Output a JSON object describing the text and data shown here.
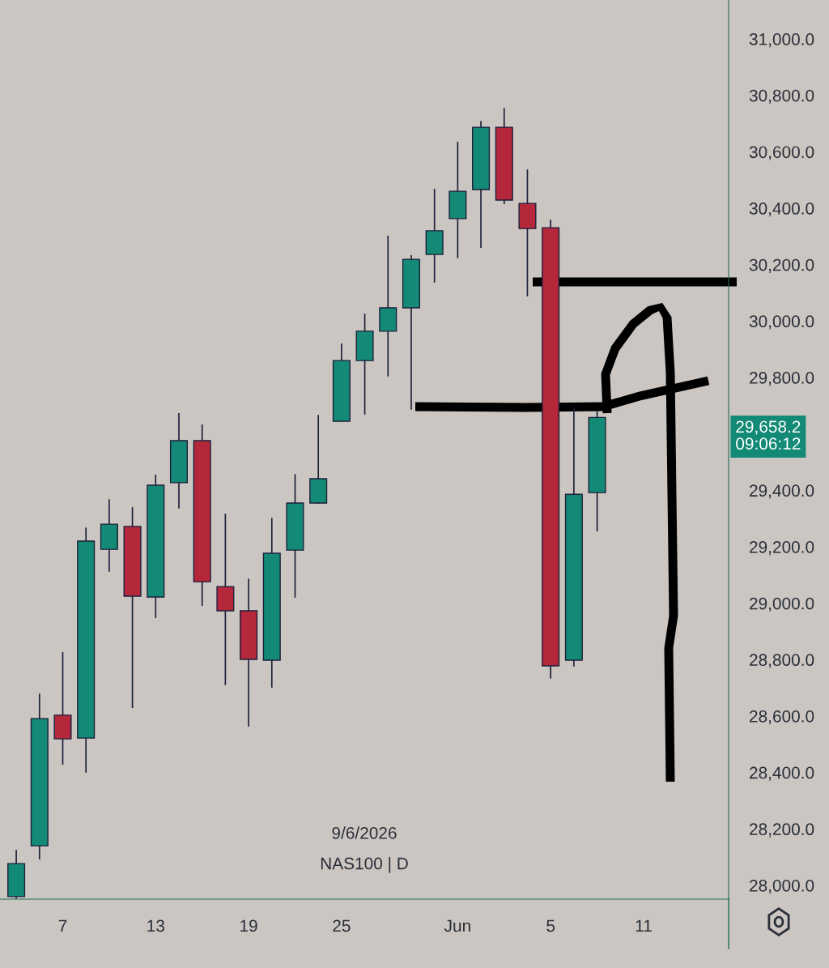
{
  "chart_data": {
    "type": "candlestick",
    "categories": [
      null,
      null,
      "7",
      null,
      null,
      null,
      "13",
      null,
      null,
      null,
      "19",
      null,
      null,
      null,
      "25",
      null,
      null,
      null,
      null,
      "Jun",
      null,
      null,
      null,
      "5",
      null,
      null,
      null,
      "11",
      null,
      null,
      null
    ],
    "ohlc": [
      [
        27960,
        28123,
        27955,
        28077
      ],
      [
        28140,
        28677,
        28094,
        28591
      ],
      [
        28603,
        28824,
        28430,
        28519
      ],
      [
        28522,
        29266,
        28402,
        29220
      ],
      [
        29191,
        29366,
        29114,
        29280
      ],
      [
        29272,
        29338,
        28631,
        29025
      ],
      [
        29022,
        29453,
        28950,
        29418
      ],
      [
        29427,
        29671,
        29338,
        29576
      ],
      [
        29576,
        29631,
        28993,
        29076
      ],
      [
        29059,
        29315,
        28712,
        28973
      ],
      [
        28973,
        29085,
        28565,
        28801
      ],
      [
        28798,
        29300,
        28703,
        29177
      ],
      [
        29188,
        29455,
        29022,
        29355
      ],
      [
        29355,
        29665,
        29355,
        29441
      ],
      [
        29645,
        29918,
        29645,
        29860
      ],
      [
        29860,
        30024,
        29671,
        29964
      ],
      [
        29964,
        30300,
        29806,
        30047
      ],
      [
        30047,
        30231,
        29688,
        30219
      ],
      [
        30236,
        30466,
        30139,
        30320
      ],
      [
        30363,
        30633,
        30225,
        30460
      ],
      [
        30466,
        30707,
        30262,
        30687
      ],
      [
        30687,
        30753,
        30417,
        30429
      ],
      [
        30417,
        30535,
        30090,
        30328
      ],
      [
        30331,
        30357,
        28735,
        28778
      ],
      [
        28798,
        29688,
        28778,
        29386
      ],
      [
        29392,
        29679,
        29257,
        29658.2
      ],
      null,
      null,
      null,
      null,
      null
    ],
    "colors": [
      "#138a76",
      "#138a76",
      "#b5273a",
      "#138a76",
      "#138a76",
      "#b5273a",
      "#138a76",
      "#138a76",
      "#b5273a",
      "#b5273a",
      "#b5273a",
      "#138a76",
      "#138a76",
      "#138a76",
      "#138a76",
      "#138a76",
      "#138a76",
      "#138a76",
      "#138a76",
      "#138a76",
      "#138a76",
      "#b5273a",
      "#b5273a",
      "#b5273a",
      "#138a76",
      "#138a76",
      null,
      null,
      null,
      null,
      null
    ],
    "ylim": [
      27951,
      31138
    ],
    "yticks": [
      {
        "value": 28000,
        "label": "28,000.0"
      },
      {
        "value": 28200,
        "label": "28,200.0"
      },
      {
        "value": 28400,
        "label": "28,400.0"
      },
      {
        "value": 28600,
        "label": "28,600.0"
      },
      {
        "value": 28800,
        "label": "28,800.0"
      },
      {
        "value": 29000,
        "label": "29,000.0"
      },
      {
        "value": 29200,
        "label": "29,200.0"
      },
      {
        "value": 29400,
        "label": "29,400.0"
      },
      {
        "value": 29800,
        "label": "29,800.0"
      },
      {
        "value": 30000,
        "label": "30,000.0"
      },
      {
        "value": 30200,
        "label": "30,200.0"
      },
      {
        "value": 30400,
        "label": "30,400.0"
      },
      {
        "value": 30600,
        "label": "30,600.0"
      },
      {
        "value": 30800,
        "label": "30,800.0"
      },
      {
        "value": 31000,
        "label": "31,000.0"
      }
    ],
    "annotations": [
      "9/6/2026",
      "NAS100 | D",
      "29,658.2",
      "09:06:12"
    ],
    "grid": false
  }
}
